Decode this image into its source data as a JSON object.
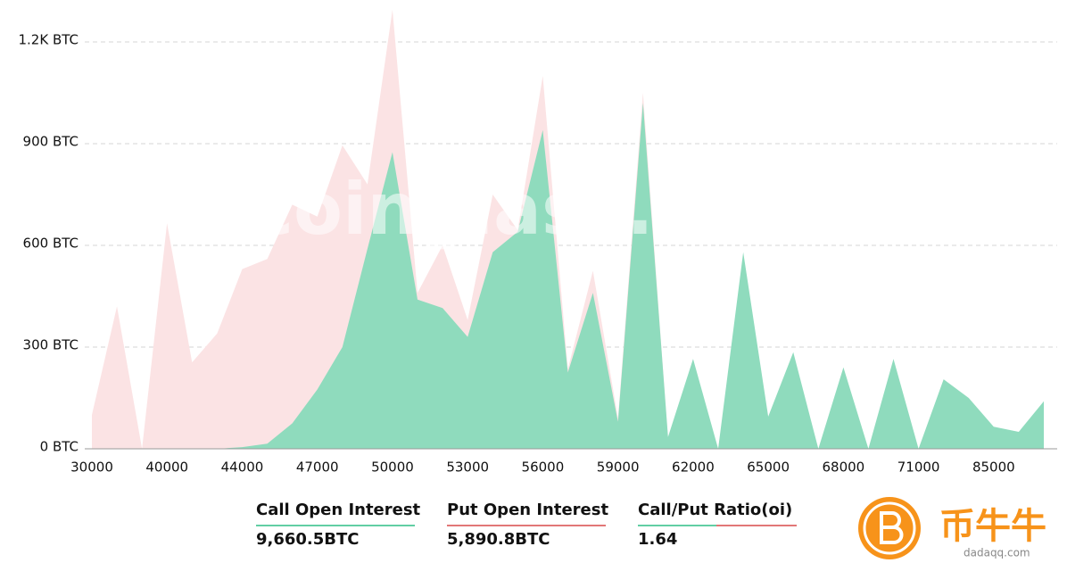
{
  "chart_data": {
    "type": "area",
    "categories": [
      "30000",
      null,
      null,
      "40000",
      null,
      null,
      "44000",
      null,
      null,
      "47000",
      null,
      null,
      "50000",
      null,
      null,
      "53000",
      null,
      null,
      "56000",
      null,
      null,
      "59000",
      null,
      null,
      "62000",
      null,
      null,
      "65000",
      null,
      null,
      "68000",
      null,
      null,
      "71000",
      null,
      null,
      "85000",
      null,
      null
    ],
    "series": [
      {
        "name": "Put Open Interest",
        "color": "#fbe3e4",
        "values": [
          100,
          420,
          0,
          665,
          255,
          340,
          530,
          560,
          720,
          685,
          895,
          780,
          1295,
          460,
          600,
          380,
          750,
          645,
          1100,
          235,
          525,
          90,
          1050,
          30,
          240,
          0,
          540,
          80,
          260,
          0,
          220,
          0,
          240,
          0,
          190,
          140,
          60,
          45,
          130
        ]
      },
      {
        "name": "Call Open Interest",
        "color": "#8fdbbd",
        "values": [
          0,
          0,
          0,
          0,
          0,
          0,
          5,
          15,
          75,
          175,
          300,
          590,
          875,
          440,
          415,
          330,
          580,
          640,
          940,
          225,
          460,
          80,
          1020,
          35,
          265,
          0,
          580,
          95,
          285,
          0,
          240,
          0,
          265,
          0,
          205,
          150,
          65,
          50,
          140
        ]
      }
    ],
    "ylim": [
      0,
      1300
    ],
    "yticks": [
      {
        "value": 0,
        "label": "0 BTC"
      },
      {
        "value": 300,
        "label": "300 BTC"
      },
      {
        "value": 600,
        "label": "600 BTC"
      },
      {
        "value": 900,
        "label": "900 BTC"
      },
      {
        "value": 1200,
        "label": "1.2K BTC"
      }
    ],
    "grid": true,
    "watermark": "coinglass.com"
  },
  "stats": [
    {
      "label": "Call Open Interest",
      "value": "9,660.5BTC"
    },
    {
      "label": "Put Open Interest",
      "value": "5,890.8BTC"
    },
    {
      "label": "Call/Put Ratio(oi)",
      "value": "1.64"
    }
  ],
  "logo": {
    "name": "币牛牛",
    "site": "dadaqq.com"
  }
}
